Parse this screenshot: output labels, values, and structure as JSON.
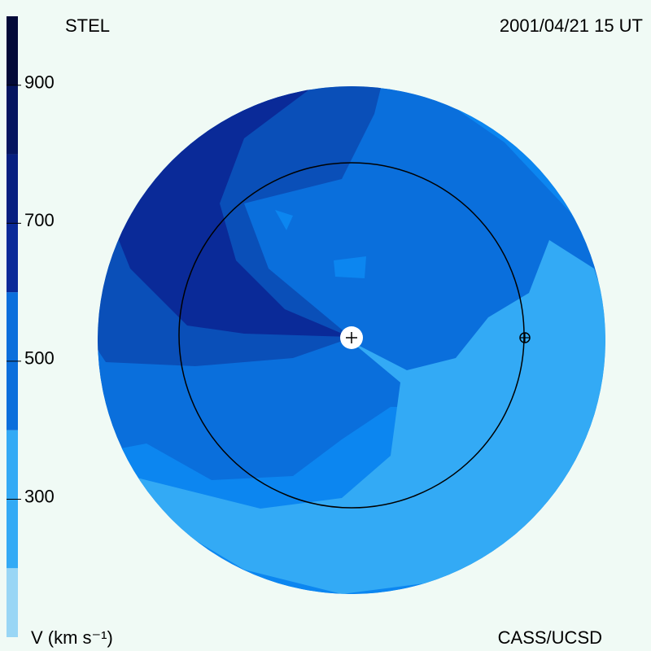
{
  "header": {
    "title": "STEL",
    "timestamp": "2001/04/21 15 UT"
  },
  "footer": {
    "credit": "CASS/UCSD"
  },
  "colorbar": {
    "label": "V (km s⁻¹)",
    "range": [
      100,
      1000
    ],
    "ticks": [
      300,
      500,
      700,
      900
    ],
    "bands": [
      {
        "from": 100,
        "to": 200,
        "color": "#99d6f5"
      },
      {
        "from": 200,
        "to": 400,
        "color": "#33aaf5"
      },
      {
        "from": 400,
        "to": 600,
        "color": "#0b6fdc"
      },
      {
        "from": 600,
        "to": 700,
        "color": "#0a2a98"
      },
      {
        "from": 700,
        "to": 800,
        "color": "#071f80"
      },
      {
        "from": 800,
        "to": 900,
        "color": "#051560"
      },
      {
        "from": 900,
        "to": 1000,
        "color": "#030a38"
      }
    ]
  }
}
